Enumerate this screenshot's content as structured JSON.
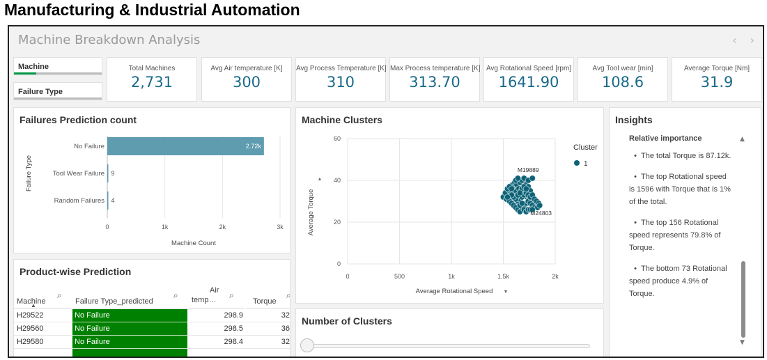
{
  "page_heading": "Manufacturing & Industrial Automation",
  "sheet": {
    "title": "Machine Breakdown Analysis",
    "prev_icon": "chevron-left-icon",
    "next_icon": "chevron-right-icon"
  },
  "filters": [
    {
      "label": "Machine",
      "accent": "#009845",
      "fill_fraction": 0.25
    },
    {
      "label": "Failure Type",
      "accent": "#bdbdbd",
      "fill_fraction": 0
    }
  ],
  "kpis": [
    {
      "label": "Total Machines",
      "value": "2,731"
    },
    {
      "label": "Avg Air temperature [K]",
      "value": "300"
    },
    {
      "label": "Avg Process Temperature [K]",
      "value": "310"
    },
    {
      "label": "Max Process temperature [K]",
      "value": "313.70"
    },
    {
      "label": "Avg Rotational Speed [rpm]",
      "value": "1641.90"
    },
    {
      "label": "Avg Tool wear [min]",
      "value": "108.6"
    },
    {
      "label": "Average Torque [Nm]",
      "value": "31.9"
    }
  ],
  "failures_chart": {
    "title": "Failures Prediction count",
    "chart_data": {
      "type": "bar",
      "orientation": "horizontal",
      "categories": [
        "No Failure",
        "Tool Wear Failure",
        "Random Failures"
      ],
      "values": [
        2720,
        9,
        4
      ],
      "data_labels": [
        "2.72k",
        "9",
        "4"
      ],
      "xlabel": "Machine Count",
      "ylabel": "Failure Type",
      "xlim": [
        0,
        3000
      ],
      "xticks": [
        "0",
        "1k",
        "2k",
        "3k"
      ],
      "bar_color": "#5f9cb0"
    }
  },
  "clusters_chart": {
    "title": "Machine Clusters",
    "chart_data": {
      "type": "scatter",
      "xlabel": "Average Rotational Speed",
      "ylabel": "Average Torque",
      "xlim": [
        0,
        2000
      ],
      "ylim": [
        0,
        60
      ],
      "xticks": [
        "0",
        "500",
        "1k",
        "1.5k",
        "2k"
      ],
      "yticks": [
        "0",
        "20",
        "40",
        "60"
      ],
      "grid": true,
      "legend_title": "Cluster",
      "legend_placement": "right",
      "series": [
        {
          "name": "1",
          "color": "#0f6275",
          "points": [
            [
              1500,
              32
            ],
            [
              1530,
              31
            ],
            [
              1550,
              33
            ],
            [
              1520,
              34
            ],
            [
              1560,
              35
            ],
            [
              1580,
              34
            ],
            [
              1600,
              36
            ],
            [
              1620,
              35
            ],
            [
              1640,
              37
            ],
            [
              1590,
              38
            ],
            [
              1610,
              39
            ],
            [
              1630,
              38
            ],
            [
              1650,
              36
            ],
            [
              1670,
              35
            ],
            [
              1690,
              34
            ],
            [
              1710,
              33
            ],
            [
              1730,
              32
            ],
            [
              1750,
              31
            ],
            [
              1770,
              30
            ],
            [
              1790,
              29
            ],
            [
              1810,
              28
            ],
            [
              1560,
              30
            ],
            [
              1580,
              29
            ],
            [
              1600,
              28
            ],
            [
              1620,
              27
            ],
            [
              1640,
              26
            ],
            [
              1660,
              25
            ],
            [
              1680,
              27
            ],
            [
              1700,
              28
            ],
            [
              1720,
              29
            ],
            [
              1740,
              30
            ],
            [
              1760,
              29
            ],
            [
              1780,
              28
            ],
            [
              1800,
              27
            ],
            [
              1660,
              39
            ],
            [
              1680,
              40
            ],
            [
              1700,
              41
            ],
            [
              1720,
              38
            ],
            [
              1740,
              37
            ],
            [
              1760,
              35
            ],
            [
              1640,
              30
            ],
            [
              1660,
              31
            ],
            [
              1680,
              32
            ],
            [
              1700,
              33
            ],
            [
              1720,
              34
            ],
            [
              1740,
              33
            ],
            [
              1620,
              31
            ],
            [
              1600,
              32
            ],
            [
              1580,
              33
            ],
            [
              1540,
              36
            ],
            [
              1560,
              37
            ],
            [
              1580,
              36
            ],
            [
              1680,
              36
            ],
            [
              1700,
              37
            ],
            [
              1720,
              36
            ],
            [
              1760,
              32
            ],
            [
              1780,
              33
            ],
            [
              1800,
              31
            ],
            [
              1820,
              30
            ],
            [
              1840,
              29
            ],
            [
              1830,
              27
            ],
            [
              1700,
              26
            ],
            [
              1720,
              25
            ],
            [
              1740,
              26
            ],
            [
              1760,
              26
            ],
            [
              1620,
              40
            ],
            [
              1640,
              41
            ],
            [
              1740,
              40
            ],
            [
              1780,
              26
            ],
            [
              1660,
              28
            ],
            [
              1680,
              29
            ],
            [
              1540,
              32
            ],
            [
              1780,
              41
            ],
            [
              1850,
              28
            ],
            [
              1640,
              33
            ],
            [
              1660,
              34
            ]
          ]
        }
      ],
      "annotations": [
        {
          "text": "M19889",
          "x": 1780,
          "y": 41
        },
        {
          "text": "M24803",
          "x": 1850,
          "y": 28
        }
      ]
    }
  },
  "product_table": {
    "title": "Product-wise Prediction",
    "columns": [
      {
        "label": "Machine"
      },
      {
        "label": "Failure Type_predicted"
      },
      {
        "label": "Air temp…",
        "label_top": "Air",
        "label_bottom": "temp…"
      },
      {
        "label": "Torque"
      }
    ],
    "rows": [
      {
        "machine": "H29522",
        "prediction": "No Failure",
        "air_temp": "298.9",
        "torque": "32"
      },
      {
        "machine": "H29560",
        "prediction": "No Failure",
        "air_temp": "298.5",
        "torque": "36"
      },
      {
        "machine": "H29580",
        "prediction": "No Failure",
        "air_temp": "298.4",
        "torque": "32"
      }
    ],
    "prediction_color": "#008000"
  },
  "clusters_count": {
    "title": "Number of Clusters",
    "slider_value": 1
  },
  "insights": {
    "title": "Insights",
    "heading": "Relative importance",
    "items": [
      "The total Torque is 87.12k.",
      "The top Rotational speed is 1596 with Torque that is 1% of the total.",
      "The top 156 Rotational speed represents 79.8% of Torque.",
      "The bottom 73 Rotational speed produce 4.9% of Torque."
    ]
  }
}
